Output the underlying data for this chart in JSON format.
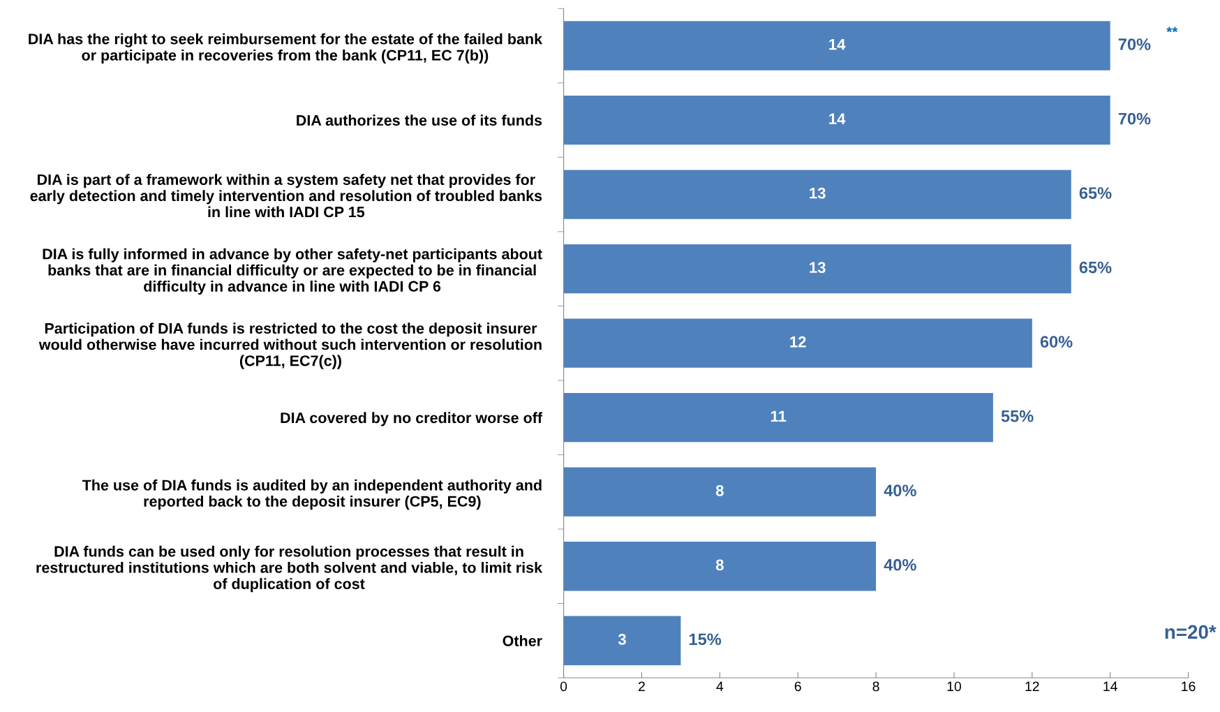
{
  "chart_data": {
    "type": "bar",
    "orientation": "horizontal",
    "categories": [
      "DIA has the right to seek reimbursement for the estate of the failed bank\nor participate in recoveries from the bank (CP11, EC 7(b))",
      "DIA authorizes the use of its funds",
      "DIA is part of a framework within a system safety net that provides for\nearly detection and timely intervention and resolution of troubled banks\nin line with IADI CP 15",
      "DIA is fully informed in advance by other safety-net participants about\nbanks that are in financial difficulty or are expected to be in financial\ndifficulty in advance in line with IADI CP 6",
      "Participation of DIA funds is restricted to the cost the deposit insurer\nwould otherwise have incurred without such intervention or resolution\n(CP11, EC7(c))",
      "DIA covered by no creditor worse off",
      "The use of DIA funds is audited by an independent authority and\nreported back to the deposit insurer (CP5, EC9)",
      "DIA funds can be used only for resolution processes that result in\nrestructured institutions which are both solvent and viable, to limit risk\nof duplication of cost",
      "Other"
    ],
    "values": [
      14,
      14,
      13,
      13,
      12,
      11,
      8,
      8,
      3
    ],
    "color": "#4f81bd",
    "data_labels": true,
    "xlim": [
      0,
      16
    ],
    "xticks": [
      0,
      2,
      4,
      6,
      8,
      10,
      12,
      14,
      16
    ],
    "grid": false,
    "legend": false,
    "annotations": [
      {
        "text": "70%",
        "x": 14,
        "y": "DIA has the right to seek reimbursement for the estate of the failed bank\nor participate in recoveries from the bank (CP11, EC 7(b))"
      },
      {
        "text": "70%",
        "x": 14,
        "y": "DIA authorizes the use of its funds"
      },
      {
        "text": "65%",
        "x": 13,
        "y": "DIA is part of a framework within a system safety net that provides for\nearly detection and timely intervention and resolution of troubled banks\nin line with IADI CP 15"
      },
      {
        "text": "65%",
        "x": 13,
        "y": "DIA is fully informed in advance by other safety-net participants about\nbanks that are in financial difficulty or are expected to be in financial\ndifficulty in advance in line with IADI CP 6"
      },
      {
        "text": "60%",
        "x": 12,
        "y": "Participation of DIA funds is restricted to the cost the deposit insurer\nwould otherwise have incurred without such intervention or resolution\n(CP11, EC7(c))"
      },
      {
        "text": "55%",
        "x": 11,
        "y": "DIA covered by no creditor worse off"
      },
      {
        "text": "40%",
        "x": 8,
        "y": "The use of DIA funds is audited by an independent authority and\nreported back to the deposit insurer (CP5, EC9)"
      },
      {
        "text": "40%",
        "x": 8,
        "y": "DIA funds can be used only for resolution processes that result in\nrestructured institutions which are both solvent and viable, to limit risk\nof duplication of cost"
      },
      {
        "text": "15%",
        "x": 3,
        "y": "Other"
      },
      "**",
      "n=20*"
    ]
  }
}
